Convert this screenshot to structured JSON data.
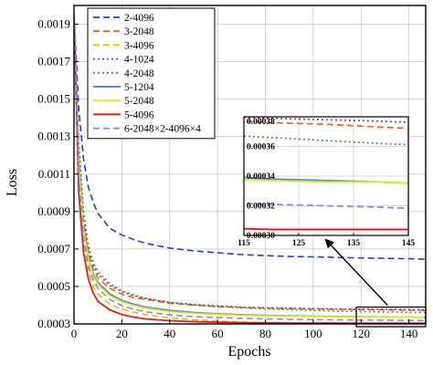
{
  "chart_data": {
    "type": "line",
    "xlabel": "Epochs",
    "ylabel": "Loss",
    "xlim": [
      0,
      147
    ],
    "ylim": [
      0.0003,
      0.002
    ],
    "x_ticks": [
      0,
      20,
      40,
      60,
      80,
      100,
      120,
      140
    ],
    "y_ticks": [
      0.0003,
      0.0005,
      0.0007,
      0.0009,
      0.0011,
      0.0013,
      0.0015,
      0.0017,
      0.0019
    ],
    "y_tick_labels": [
      "0.0003",
      "0.0005",
      "0.0007",
      "0.0009",
      "0.0011",
      "0.0013",
      "0.0015",
      "0.0017",
      "0.0019"
    ],
    "grid": true,
    "legend_position": "top-left",
    "x": [
      0,
      2,
      4,
      6,
      8,
      10,
      15,
      20,
      25,
      30,
      40,
      50,
      60,
      70,
      80,
      90,
      100,
      110,
      120,
      130,
      140,
      147
    ],
    "series": [
      {
        "name": "2-4096",
        "color": "#1f3fd6",
        "dash": "dash",
        "values": [
          0.00195,
          0.00145,
          0.00118,
          0.00103,
          0.00095,
          0.00089,
          0.00081,
          0.000775,
          0.00075,
          0.00073,
          0.000705,
          0.00069,
          0.00068,
          0.00067,
          0.000665,
          0.00066,
          0.000658,
          0.000655,
          0.000652,
          0.00065,
          0.000648,
          0.000646
        ]
      },
      {
        "name": "3-2048",
        "color": "#ff5a1f",
        "dash": "dash",
        "values": [
          0.00195,
          0.0012,
          0.00085,
          0.00068,
          0.000595,
          0.000545,
          0.00049,
          0.00046,
          0.00044,
          0.00043,
          0.00041,
          0.0004,
          0.000393,
          0.000388,
          0.000385,
          0.000382,
          0.00038,
          0.000378,
          0.000376,
          0.000375,
          0.000373,
          0.000372
        ]
      },
      {
        "name": "3-4096",
        "color": "#f4b400",
        "dash": "dash",
        "values": [
          0.00195,
          0.00105,
          0.00072,
          0.00058,
          0.0005,
          0.00046,
          0.000405,
          0.00038,
          0.000362,
          0.00035,
          0.000332,
          0.000322,
          0.000315,
          0.00031,
          0.000306,
          0.000303,
          0.0003,
          0.000298,
          0.000296,
          0.000294,
          0.000292,
          0.000291
        ]
      },
      {
        "name": "4-1024",
        "color": "#8a3b8e",
        "dash": "dot",
        "values": [
          0.00195,
          0.00125,
          0.00088,
          0.0007,
          0.000615,
          0.000565,
          0.000505,
          0.000472,
          0.00045,
          0.000435,
          0.000415,
          0.000404,
          0.000396,
          0.00039,
          0.000386,
          0.000384,
          0.000382,
          0.00038,
          0.000379,
          0.000378,
          0.000377,
          0.000376
        ]
      },
      {
        "name": "4-2048",
        "color": "#3ea12a",
        "dash": "dot",
        "values": [
          0.00195,
          0.00128,
          0.0009,
          0.00072,
          0.00063,
          0.00058,
          0.000515,
          0.000478,
          0.000455,
          0.000438,
          0.000415,
          0.000402,
          0.000392,
          0.000386,
          0.00038,
          0.000376,
          0.000372,
          0.000368,
          0.000366,
          0.000364,
          0.000362,
          0.000361
        ]
      },
      {
        "name": "5-1204",
        "color": "#4a90d9",
        "dash": "solid",
        "values": [
          0.00195,
          0.00118,
          0.00082,
          0.00065,
          0.000565,
          0.00052,
          0.00046,
          0.000425,
          0.000405,
          0.00039,
          0.000372,
          0.000361,
          0.000354,
          0.000349,
          0.000346,
          0.000343,
          0.000341,
          0.00034,
          0.000338,
          0.000337,
          0.000336,
          0.000335
        ]
      },
      {
        "name": "5-2048",
        "color": "#e8e81a",
        "dash": "solid",
        "values": [
          0.00195,
          0.00115,
          0.0008,
          0.00064,
          0.000555,
          0.00051,
          0.00045,
          0.000418,
          0.000398,
          0.000384,
          0.000366,
          0.000356,
          0.00035,
          0.000346,
          0.000343,
          0.000341,
          0.000339,
          0.000338,
          0.000337,
          0.000336,
          0.000336,
          0.000335
        ]
      },
      {
        "name": "5-4096",
        "color": "#e0201b",
        "dash": "solid",
        "values": [
          0.00195,
          0.001,
          0.00068,
          0.00054,
          0.000465,
          0.00042,
          0.000375,
          0.00035,
          0.000336,
          0.000327,
          0.000317,
          0.000312,
          0.000309,
          0.000307,
          0.000306,
          0.000305,
          0.000305,
          0.000305,
          0.000304,
          0.000304,
          0.000304,
          0.000304
        ]
      },
      {
        "name": "6-2048×2-4096×4",
        "color": "#7b8ff0",
        "dash": "dash",
        "values": [
          0.00195,
          0.0011,
          0.00076,
          0.00061,
          0.000535,
          0.00049,
          0.00043,
          0.000398,
          0.000378,
          0.000365,
          0.000348,
          0.000339,
          0.000334,
          0.00033,
          0.000327,
          0.000325,
          0.000323,
          0.000322,
          0.000321,
          0.00032,
          0.000319,
          0.000318
        ]
      }
    ],
    "inset": {
      "xlim": [
        115,
        145
      ],
      "ylim": [
        0.0003,
        0.00038
      ],
      "x_ticks": [
        115,
        125,
        135,
        145
      ],
      "y_ticks": [
        0.0003,
        0.00032,
        0.00034,
        0.00036,
        0.00038
      ],
      "y_tick_labels": [
        "0.00030",
        "0.00032",
        "0.00034",
        "0.00036",
        "0.00038"
      ],
      "zoom_box_x": [
        118,
        147
      ],
      "zoom_box_y": [
        0.0003,
        0.00039
      ]
    }
  }
}
